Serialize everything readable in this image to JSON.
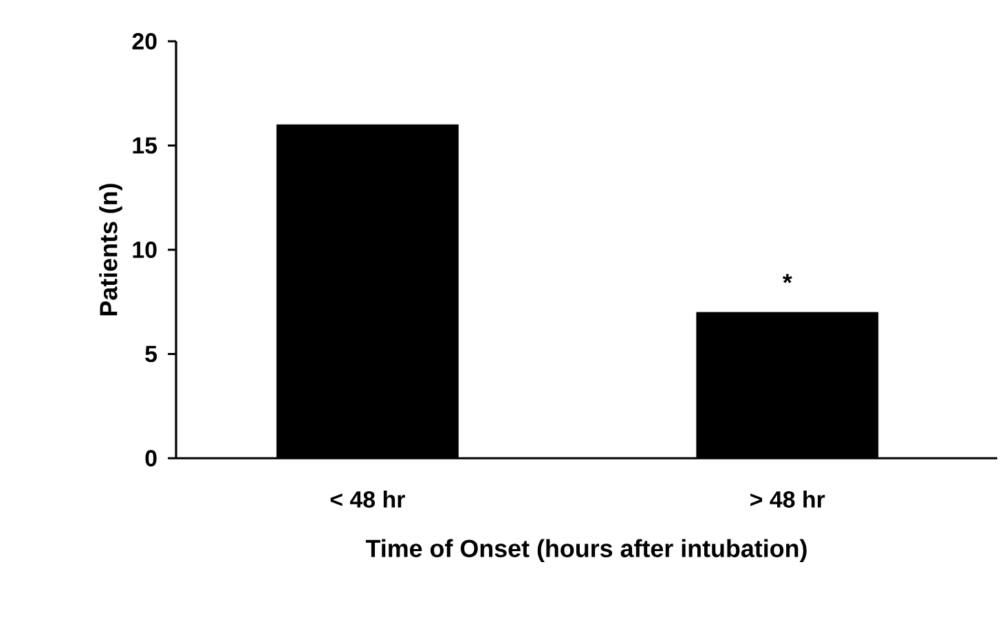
{
  "chart_data": {
    "type": "bar",
    "xlabel": "Time of Onset (hours after intubation)",
    "ylabel": "Patients (n)",
    "categories": [
      "< 48 hr",
      "> 48 hr"
    ],
    "values": [
      16,
      7
    ],
    "color": "#000000",
    "ylim": [
      0,
      20
    ],
    "yticks": [
      0,
      5,
      10,
      15,
      20
    ],
    "annotations": [
      "*"
    ]
  }
}
